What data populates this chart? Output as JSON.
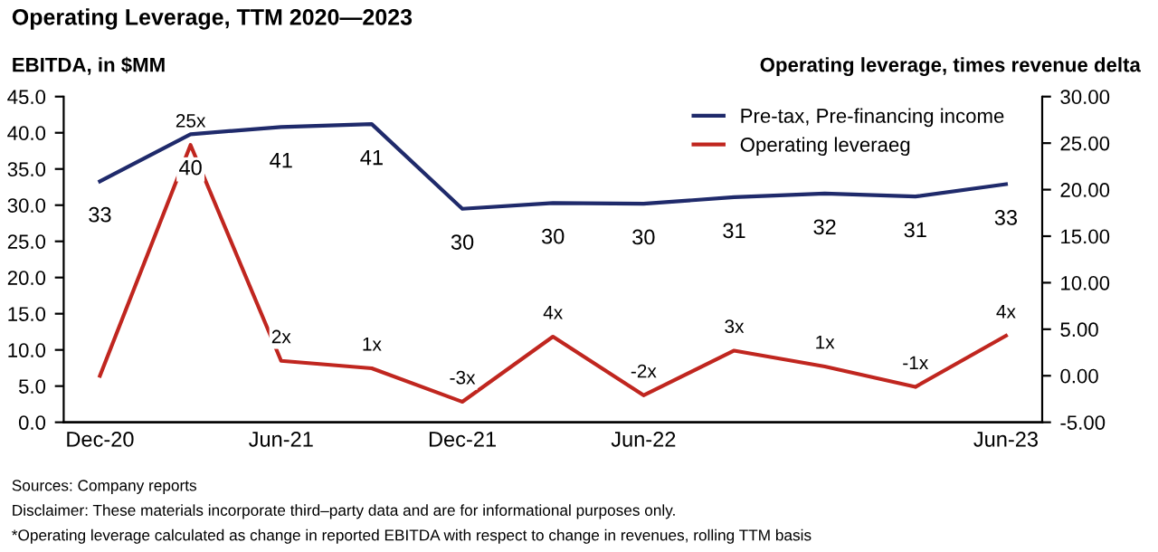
{
  "chart_data": {
    "type": "line",
    "title": "Operating Leverage, TTM 2020—2023",
    "ylabel": "EBITDA, in $MM",
    "y2label": "Operating leverage, times revenue delta",
    "categories": [
      "Dec-20",
      null,
      "Jun-21",
      null,
      "Dec-21",
      null,
      "Jun-22",
      null,
      null,
      null,
      "Jun-23"
    ],
    "series": [
      {
        "name": "Pre-tax, Pre-financing income",
        "color": "#1f2a6b",
        "values": [
          33.3,
          39.8,
          40.8,
          41.2,
          29.5,
          30.3,
          30.2,
          31.1,
          31.6,
          31.2,
          32.9
        ],
        "value_labels": [
          "33",
          "40",
          "41",
          "41",
          "30",
          "30",
          "30",
          "31",
          "32",
          "31",
          "33"
        ]
      },
      {
        "name": "Operating leveraeg",
        "color": "#c0261f",
        "axis": "y2",
        "values": [
          0.0,
          24.8,
          1.6,
          0.8,
          -2.8,
          4.2,
          -2.1,
          2.7,
          1.0,
          -1.2,
          4.3
        ],
        "value_labels": [
          null,
          "25x",
          "2x",
          "1x",
          "-3x",
          "4x",
          "-2x",
          "3x",
          "1x",
          "-1x",
          "4x"
        ]
      }
    ],
    "ylim": [
      0,
      45
    ],
    "yticks": [
      {
        "value": 0,
        "label": "0.0"
      },
      {
        "value": 5,
        "label": "5.0"
      },
      {
        "value": 10,
        "label": "10.0"
      },
      {
        "value": 15,
        "label": "15.0"
      },
      {
        "value": 20,
        "label": "20.0"
      },
      {
        "value": 25,
        "label": "25.0"
      },
      {
        "value": 30,
        "label": "30.0"
      },
      {
        "value": 35,
        "label": "35.0"
      },
      {
        "value": 40,
        "label": "40.0"
      },
      {
        "value": 45,
        "label": "45.0"
      }
    ],
    "y2lim": [
      -5,
      30
    ],
    "y2ticks": [
      {
        "value": -5,
        "label": "-5.00"
      },
      {
        "value": 0,
        "label": "0.00"
      },
      {
        "value": 5,
        "label": "5.00"
      },
      {
        "value": 10,
        "label": "10.00"
      },
      {
        "value": 15,
        "label": "15.00"
      },
      {
        "value": 20,
        "label": "20.00"
      },
      {
        "value": 25,
        "label": "25.00"
      },
      {
        "value": 30,
        "label": "30.00"
      }
    ],
    "legend": "top right",
    "grid": false,
    "marker": "none",
    "line_style": "solid",
    "annotations": [
      "Sources: Company reports",
      "Disclaimer: These materials incorporate third–party data and are for informational purposes only.",
      "*Operating leverage calculated as change in reported EBITDA with respect to change in revenues, rolling TTM basis"
    ]
  }
}
